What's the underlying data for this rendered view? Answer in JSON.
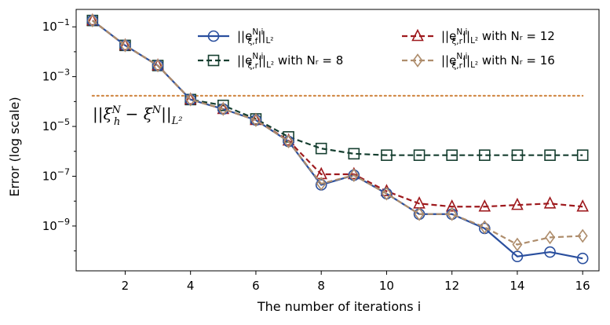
{
  "chart_data": {
    "type": "line",
    "xlabel": "The number of iterations i",
    "ylabel": "Error (log scale)",
    "yscale": "log",
    "xlim": [
      0.5,
      16.5
    ],
    "ylim_log10": [
      -10.8,
      -0.3
    ],
    "x_ticks": [
      2,
      4,
      6,
      8,
      10,
      12,
      14,
      16
    ],
    "y_ticks": [
      {
        "exp": -1,
        "label": "10^-1"
      },
      {
        "exp": -3,
        "label": "10^-3"
      },
      {
        "exp": -5,
        "label": "10^-5"
      },
      {
        "exp": -7,
        "label": "10^-7"
      },
      {
        "exp": -9,
        "label": "10^-9"
      }
    ],
    "x": [
      1,
      2,
      3,
      4,
      5,
      6,
      7,
      8,
      9,
      10,
      11,
      12,
      13,
      14,
      15,
      16
    ],
    "series": [
      {
        "name": "||e^{N,i}_{ξ,f}||_{L²}",
        "color": "#2a4f9e",
        "marker": "circle",
        "dashed": false,
        "values": [
          0.18,
          0.018,
          0.0028,
          0.00012,
          5e-05,
          1.8e-05,
          2.5e-06,
          4.5e-08,
          1.1e-07,
          2e-08,
          3e-09,
          3e-09,
          8e-10,
          6e-11,
          9e-11,
          5e-11
        ]
      },
      {
        "name": "||e^{N,i}_{ξ,r}||_{L²} with N_r = 8",
        "color": "#163f30",
        "marker": "square",
        "dashed": true,
        "values": [
          0.18,
          0.018,
          0.0028,
          0.00012,
          7e-05,
          2e-05,
          3.8e-06,
          1.3e-06,
          8e-07,
          7e-07,
          7e-07,
          7e-07,
          7e-07,
          7e-07,
          7e-07,
          7e-07
        ]
      },
      {
        "name": "||e^{N,i}_{ξ,r}||_{L²} with N_r = 12",
        "color": "#9e1a1e",
        "marker": "triangle",
        "dashed": true,
        "values": [
          0.18,
          0.018,
          0.0028,
          0.00012,
          5e-05,
          1.8e-05,
          2.7e-06,
          1.2e-07,
          1.2e-07,
          2.5e-08,
          8e-09,
          6e-09,
          6e-09,
          7e-09,
          8e-09,
          6e-09
        ]
      },
      {
        "name": "||e^{N,i}_{ξ,r}||_{L²} with N_r = 16",
        "color": "#ae8d6c",
        "marker": "diamond",
        "dashed": true,
        "values": [
          0.18,
          0.018,
          0.0028,
          0.00012,
          5e-05,
          1.8e-05,
          2.5e-06,
          5e-08,
          1.1e-07,
          2e-08,
          3e-09,
          3e-09,
          9e-10,
          1.8e-10,
          3.5e-10,
          4e-10
        ]
      }
    ],
    "reference_line": {
      "name": "||ξ_h^N − ξ^N||_{L²}",
      "value": 0.00017,
      "color": "#d28c4b",
      "style": "dotted"
    },
    "legend_position": "top-right"
  }
}
